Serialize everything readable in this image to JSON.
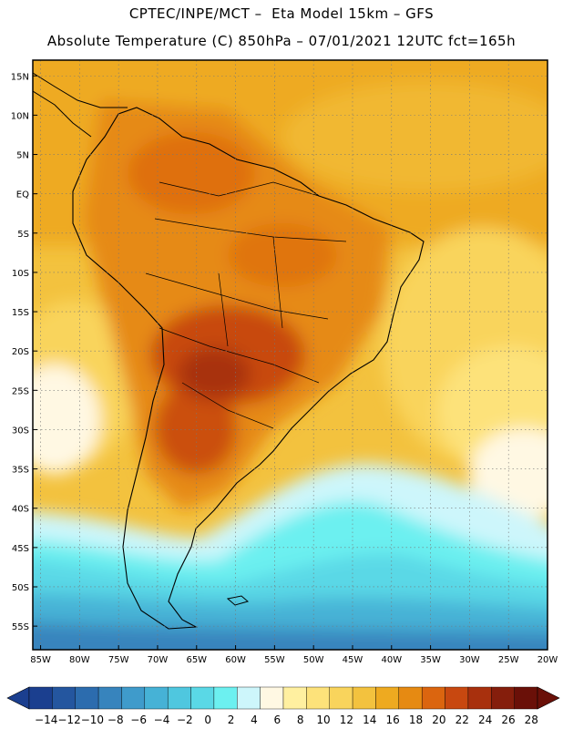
{
  "header": {
    "line1": "CPTEC/INPE/MCT –  Eta Model 15km – GFS",
    "line2": "Absolute Temperature (C) 850hPa – 07/01/2021 12UTC fct=165h"
  },
  "map": {
    "lat_ticks": [
      "15N",
      "10N",
      "5N",
      "EQ",
      "5S",
      "10S",
      "15S",
      "20S",
      "25S",
      "30S",
      "35S",
      "40S",
      "45S",
      "50S",
      "55S"
    ],
    "lat_values": [
      15,
      10,
      5,
      0,
      -5,
      -10,
      -15,
      -20,
      -25,
      -30,
      -35,
      -40,
      -45,
      -50,
      -55
    ],
    "lon_ticks": [
      "85W",
      "80W",
      "75W",
      "70W",
      "65W",
      "60W",
      "55W",
      "50W",
      "45W",
      "40W",
      "35W",
      "30W",
      "25W",
      "20W"
    ],
    "lon_values": [
      -85,
      -80,
      -75,
      -70,
      -65,
      -60,
      -55,
      -50,
      -45,
      -40,
      -35,
      -30,
      -25,
      -20
    ],
    "lat_range": [
      -58,
      17
    ],
    "lon_range": [
      -86,
      -20
    ]
  },
  "colorbar": {
    "labels": [
      "-14",
      "-12",
      "-10",
      "-8",
      "-6",
      "-4",
      "-2",
      "0",
      "2",
      "4",
      "6",
      "8",
      "10",
      "12",
      "14",
      "16",
      "18",
      "20",
      "22",
      "24",
      "26",
      "28"
    ],
    "colors": [
      "#1b3f8f",
      "#24569f",
      "#2c6cae",
      "#3784bd",
      "#3f9bcb",
      "#46b2d6",
      "#4fc7df",
      "#5ad8e6",
      "#6cf0f0",
      "#cdf6fb",
      "#fff8e3",
      "#fff0a0",
      "#fde27a",
      "#f9d45c",
      "#f3c23e",
      "#eeaa20",
      "#e68a12",
      "#db650f",
      "#c84810",
      "#a8300d",
      "#851e0c",
      "#6a1008"
    ]
  }
}
